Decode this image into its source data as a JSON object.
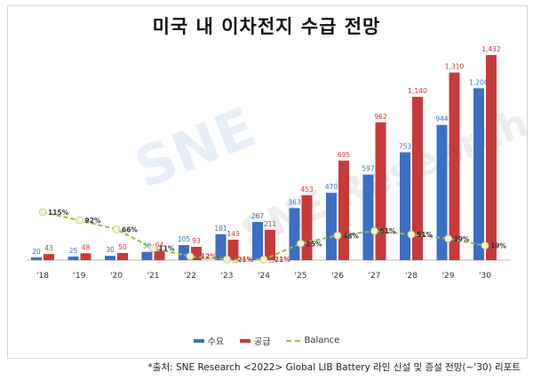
{
  "chart_data": {
    "type": "bar",
    "title": "미국 내 이차전지 수급 전망",
    "categories": [
      "'18",
      "'19",
      "'20",
      "'21",
      "'22",
      "'23",
      "'24",
      "'25",
      "'26",
      "'27",
      "'28",
      "'29",
      "'30"
    ],
    "series": [
      {
        "name": "수요",
        "color": "#3a6fc4",
        "values": [
          20,
          25,
          30,
          58,
          105,
          181,
          267,
          363,
          470,
          597,
          753,
          944,
          1200
        ]
      },
      {
        "name": "공급",
        "color": "#c83a3a",
        "values": [
          43,
          48,
          50,
          64,
          93,
          143,
          211,
          453,
          695,
          962,
          1140,
          1310,
          1432
        ]
      }
    ],
    "balance": {
      "name": "Balance",
      "color": "#8bc34a",
      "values": [
        115,
        92,
        66,
        11,
        -12,
        -21,
        -21,
        25,
        48,
        61,
        51,
        39,
        19
      ],
      "labels": [
        "115%",
        "92%",
        "66%",
        "11%",
        "△12%",
        "△21%",
        "△21%",
        "25%",
        "48%",
        "61%",
        "51%",
        "39%",
        "19%"
      ]
    },
    "bar_labels": {
      "demand": [
        "20",
        "25",
        "30",
        "58",
        "105",
        "181",
        "267",
        "363",
        "470",
        "597",
        "753",
        "944",
        "1,200"
      ],
      "supply": [
        "43",
        "48",
        "50",
        "64",
        "93",
        "143",
        "211",
        "453",
        "695",
        "962",
        "1,140",
        "1,310",
        "1,432"
      ]
    },
    "legend_position": "bottom"
  },
  "watermark": "SNE Research",
  "footnote": "*출처:  SNE Research <2022> Global LIB Battery 라인 신설 및 증설 전망(~'30) 리포트"
}
